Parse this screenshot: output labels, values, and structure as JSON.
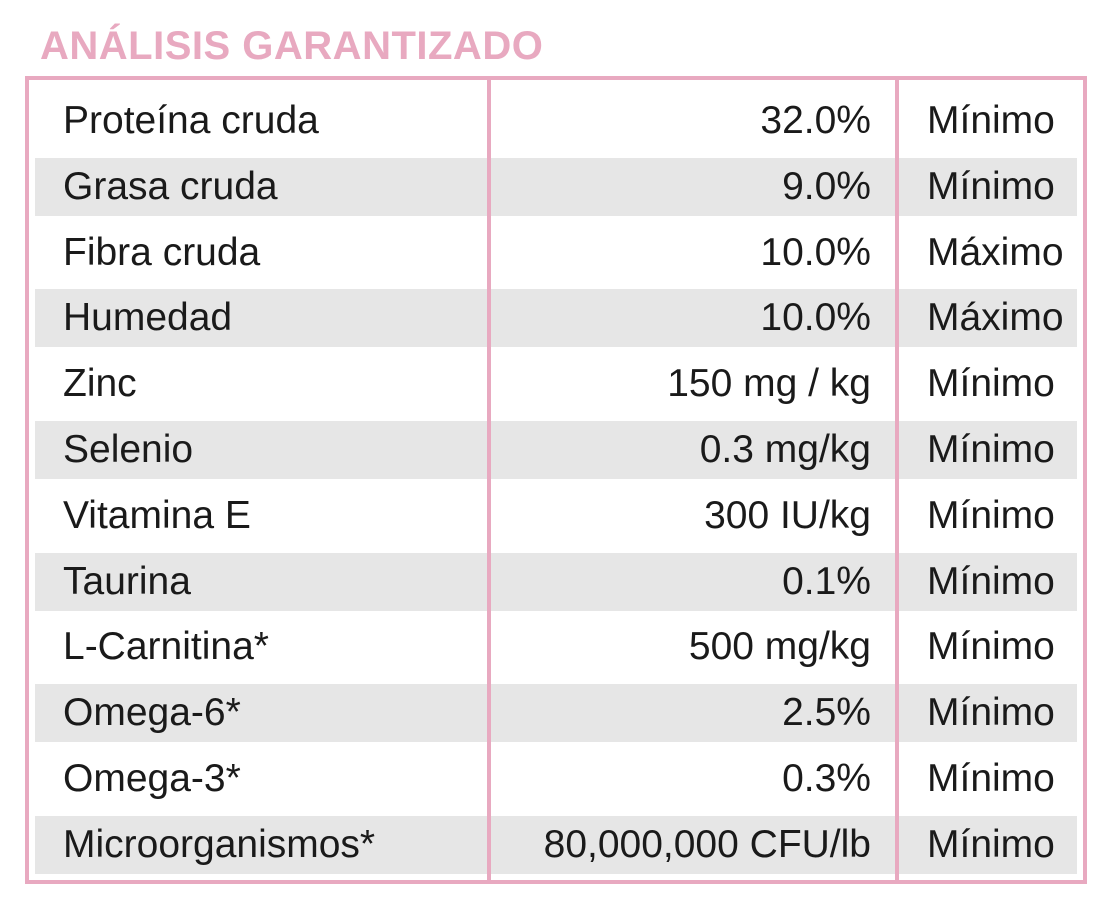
{
  "title": "ANÁLISIS GARANTIZADO",
  "colors": {
    "accent_pink": "#e8a9c0",
    "row_shade": "#e6e6e6",
    "text": "#1a1a1a"
  },
  "rows": [
    {
      "name": "Proteína cruda",
      "value": "32.0%",
      "type": "Mínimo"
    },
    {
      "name": "Grasa cruda",
      "value": "9.0%",
      "type": "Mínimo"
    },
    {
      "name": "Fibra cruda",
      "value": "10.0%",
      "type": "Máximo"
    },
    {
      "name": "Humedad",
      "value": "10.0%",
      "type": "Máximo"
    },
    {
      "name": "Zinc",
      "value": "150 mg / kg",
      "type": "Mínimo"
    },
    {
      "name": "Selenio",
      "value": "0.3 mg/kg",
      "type": "Mínimo"
    },
    {
      "name": "Vitamina E",
      "value": "300 IU/kg",
      "type": "Mínimo"
    },
    {
      "name": "Taurina",
      "value": "0.1%",
      "type": "Mínimo"
    },
    {
      "name": "L-Carnitina*",
      "value": "500 mg/kg",
      "type": "Mínimo"
    },
    {
      "name": "Omega-6*",
      "value": "2.5%",
      "type": "Mínimo"
    },
    {
      "name": "Omega-3*",
      "value": "0.3%",
      "type": "Mínimo"
    },
    {
      "name": "Microorganismos*",
      "value": "80,000,000 CFU/lb",
      "type": "Mínimo"
    }
  ]
}
